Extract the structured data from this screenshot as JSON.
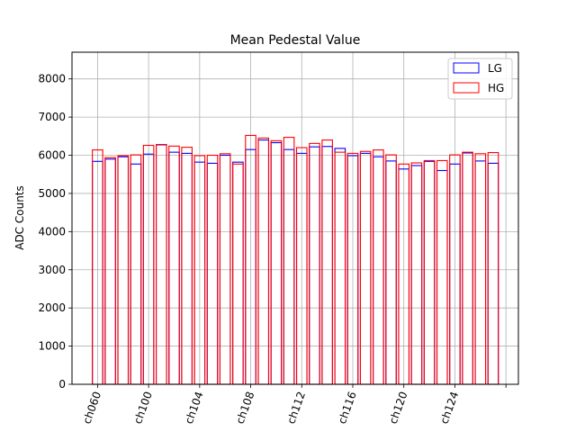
{
  "chart_data": {
    "type": "bar",
    "title": "Mean Pedestal Value",
    "xlabel": "",
    "ylabel": "ADC Counts",
    "ylim": [
      0,
      8700
    ],
    "yticks": [
      0,
      1000,
      2000,
      3000,
      4000,
      5000,
      6000,
      7000,
      8000
    ],
    "xtick_labels": [
      "ch060",
      "ch100",
      "ch104",
      "ch108",
      "ch112",
      "ch116",
      "ch120",
      "ch124",
      ""
    ],
    "xtick_index": [
      0,
      4,
      8,
      12,
      16,
      20,
      24,
      28,
      32
    ],
    "grid": true,
    "legend": "top-right",
    "series": [
      {
        "name": "LG",
        "color": "#0000ff",
        "values": [
          5840,
          5900,
          5960,
          5770,
          6030,
          6280,
          6080,
          6050,
          5820,
          5790,
          6000,
          5820,
          6150,
          6400,
          6330,
          6150,
          6050,
          6220,
          6230,
          6180,
          5990,
          6050,
          5960,
          5850,
          5640,
          5730,
          5840,
          5600,
          5770,
          6060,
          5850,
          5790
        ]
      },
      {
        "name": "HG",
        "color": "#ff0000",
        "values": [
          6140,
          5940,
          5990,
          6010,
          6260,
          6270,
          6240,
          6210,
          5990,
          6000,
          6040,
          5770,
          6520,
          6450,
          6380,
          6470,
          6200,
          6310,
          6400,
          6080,
          6050,
          6100,
          6140,
          6010,
          5770,
          5800,
          5860,
          5860,
          6010,
          6080,
          6040,
          6070
        ]
      }
    ]
  }
}
